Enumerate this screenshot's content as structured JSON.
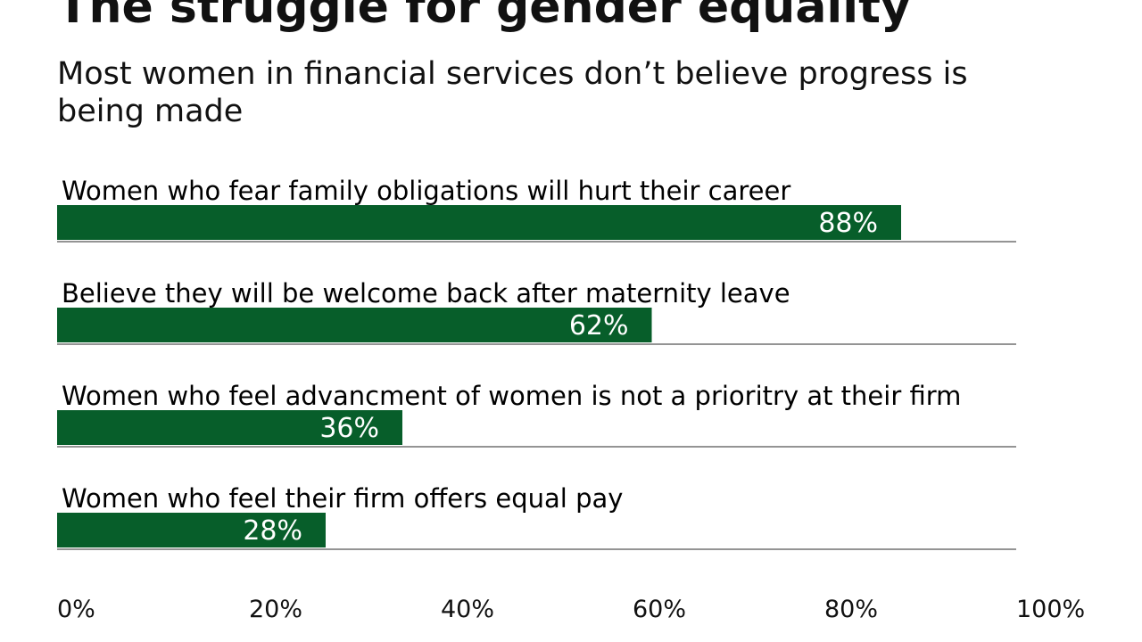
{
  "chart_data": {
    "type": "bar",
    "orientation": "horizontal",
    "title": "The struggle for gender equality",
    "subtitle": "Most women in financial services don’t believe progress is being made",
    "categories": [
      "Women who fear family obligations will hurt their career",
      "Believe they will be welcome back after maternity leave",
      "Women who feel advancment of women is not a prioritry at their firm",
      "Women who feel their firm offers equal pay"
    ],
    "values": [
      88,
      62,
      36,
      28
    ],
    "value_labels": [
      "88%",
      "62%",
      "36%",
      "28%"
    ],
    "color": "#075e2a",
    "xlim": [
      0,
      100
    ],
    "xticks": [
      {
        "value": 0,
        "label": "0%"
      },
      {
        "value": 20,
        "label": "20%"
      },
      {
        "value": 40,
        "label": "40%"
      },
      {
        "value": 60,
        "label": "60%"
      },
      {
        "value": 80,
        "label": "80%"
      },
      {
        "value": 100,
        "label": "100%"
      }
    ]
  }
}
